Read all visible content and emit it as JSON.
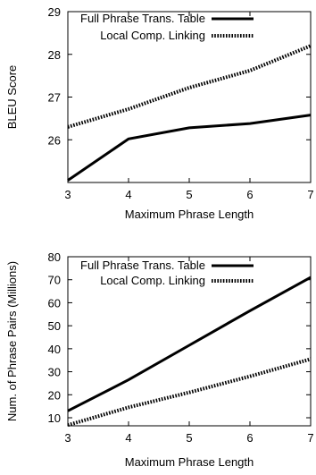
{
  "chart_data": [
    {
      "type": "line",
      "xlabel": "Maximum Phrase Length",
      "ylabel": "BLEU Score",
      "xlim": [
        3,
        7
      ],
      "ylim": [
        25,
        29
      ],
      "xticks": [
        "3",
        "4",
        "5",
        "6",
        "7"
      ],
      "yticks": [
        "26",
        "27",
        "28",
        "29"
      ],
      "x": [
        3,
        4,
        5,
        6,
        7
      ],
      "series": [
        {
          "name": "Full Phrase Trans. Table",
          "values": [
            25.05,
            26.02,
            26.28,
            26.38,
            26.58
          ],
          "style": "solid",
          "color": "#000000"
        },
        {
          "name": "Local Comp. Linking",
          "values": [
            26.3,
            26.72,
            27.22,
            27.62,
            28.2
          ],
          "style": "dotted",
          "color": "#000000"
        }
      ],
      "legend": "top-right",
      "grid": false
    },
    {
      "type": "line",
      "xlabel": "Maximum Phrase Length",
      "ylabel": "Num. of Phrase Pairs (Millions)",
      "xlim": [
        3,
        7
      ],
      "ylim": [
        6.5,
        80
      ],
      "xticks": [
        "3",
        "4",
        "5",
        "6",
        "7"
      ],
      "yticks": [
        "10",
        "20",
        "30",
        "40",
        "50",
        "60",
        "70",
        "80"
      ],
      "x": [
        3,
        4,
        5,
        6,
        7
      ],
      "series": [
        {
          "name": "Full Phrase Trans. Table",
          "values": [
            13,
            26.5,
            41.5,
            56.5,
            71
          ],
          "style": "solid",
          "color": "#000000"
        },
        {
          "name": "Local Comp. Linking",
          "values": [
            6.8,
            14.5,
            21,
            28,
            35.5
          ],
          "style": "dotted",
          "color": "#000000"
        }
      ],
      "legend": "top-right",
      "grid": false
    }
  ]
}
